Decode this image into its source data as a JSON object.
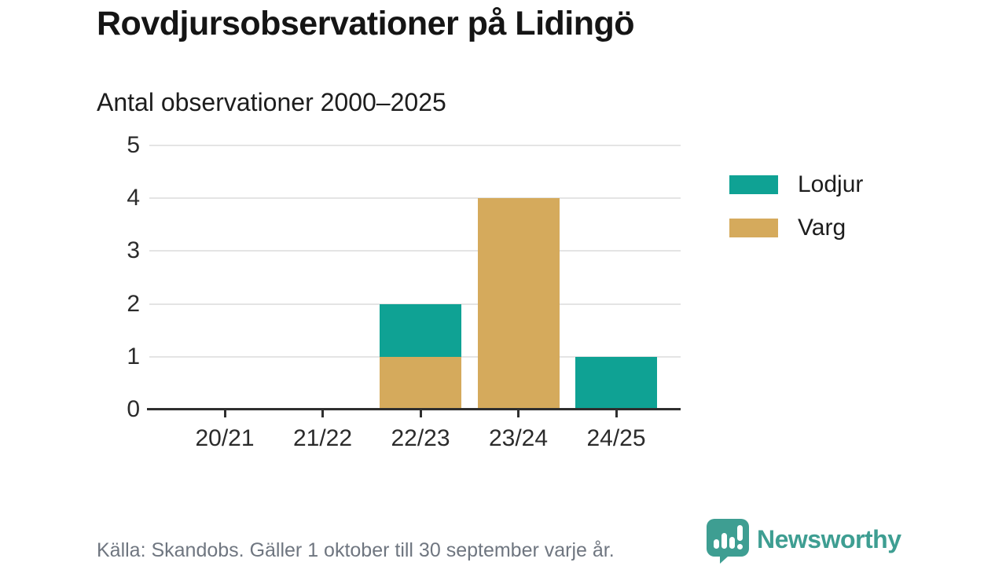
{
  "header": {
    "title": "Rovdjursobservationer på Lidingö",
    "subtitle": "Antal observationer 2000–2025"
  },
  "chart_data": {
    "type": "bar",
    "stacked": true,
    "title": "Rovdjursobservationer på Lidingö",
    "subtitle": "Antal observationer 2000–2025",
    "categories": [
      "20/21",
      "21/22",
      "22/23",
      "23/24",
      "24/25"
    ],
    "series": [
      {
        "name": "Lodjur",
        "color": "#0FA294",
        "values": [
          0,
          0,
          1,
          0,
          1
        ]
      },
      {
        "name": "Varg",
        "color": "#D5AA5C",
        "values": [
          0,
          0,
          1,
          4,
          0
        ]
      }
    ],
    "stack_bottom_to_top": [
      "Varg",
      "Lodjur"
    ],
    "xlabel": "",
    "ylabel": "",
    "ylim": [
      0,
      5
    ],
    "yticks": [
      0,
      1,
      2,
      3,
      4,
      5
    ],
    "grid": true,
    "legend_position": "right"
  },
  "footer": {
    "source": "Källa: Skandobs. Gäller 1 oktober till 30 september varje år.",
    "brand": "Newsworthy"
  },
  "colors": {
    "lodjur": "#0FA294",
    "varg": "#D5AA5C",
    "brand_teal": "#3E9E92",
    "axis": "#2F2F2F",
    "gridline": "#E4E4E4",
    "muted_text": "#6F7680"
  }
}
